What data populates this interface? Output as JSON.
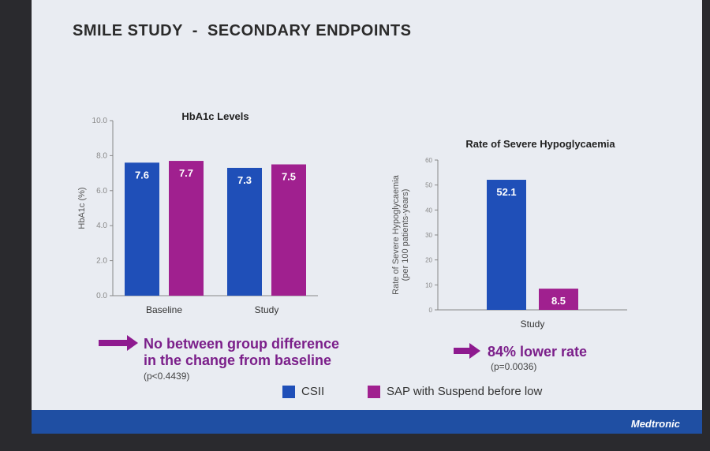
{
  "slide": {
    "title": "SMILE STUDY  -  SECONDARY ENDPOINTS",
    "brand": "Medtronic"
  },
  "colors": {
    "csii": "#1f4fb8",
    "sap": "#a0208f",
    "arrow": "#8e1a8f"
  },
  "chart_data": [
    {
      "type": "bar",
      "title": "HbA1c Levels",
      "ylabel": "HbA1c (%)",
      "xlabel": "",
      "ylim": [
        0,
        10
      ],
      "yticks": [
        "0.0",
        "2.0",
        "4.0",
        "6.0",
        "8.0",
        "10.0"
      ],
      "categories": [
        "Baseline",
        "Study"
      ],
      "series": [
        {
          "name": "CSII",
          "values": [
            7.6,
            7.3
          ],
          "labels": [
            "7.6",
            "7.3"
          ]
        },
        {
          "name": "SAP with Suspend before low",
          "values": [
            7.7,
            7.5
          ],
          "labels": [
            "7.7",
            "7.5"
          ]
        }
      ],
      "grid": false
    },
    {
      "type": "bar",
      "title": "Rate of Severe Hypoglycaemia",
      "ylabel": "Rate of Severe Hypoglycaemia",
      "ylabel2": "(per 100 patients-years)",
      "xlabel": "",
      "ylim": [
        0,
        60
      ],
      "yticks": [
        "0",
        "10",
        "20",
        "30",
        "40",
        "50",
        "60"
      ],
      "categories": [
        "Study"
      ],
      "series": [
        {
          "name": "CSII",
          "values": [
            52.1
          ],
          "labels": [
            "52.1"
          ]
        },
        {
          "name": "SAP with Suspend before low",
          "values": [
            8.5
          ],
          "labels": [
            "8.5"
          ]
        }
      ],
      "grid": false
    }
  ],
  "notes": {
    "left_line1": "No between group difference",
    "left_line2": "in the change from baseline",
    "left_p": "(p<0.4439)",
    "right_line1": "84% lower rate",
    "right_p": "(p=0.0036)"
  },
  "legend": [
    "CSII",
    "SAP with Suspend before low"
  ]
}
